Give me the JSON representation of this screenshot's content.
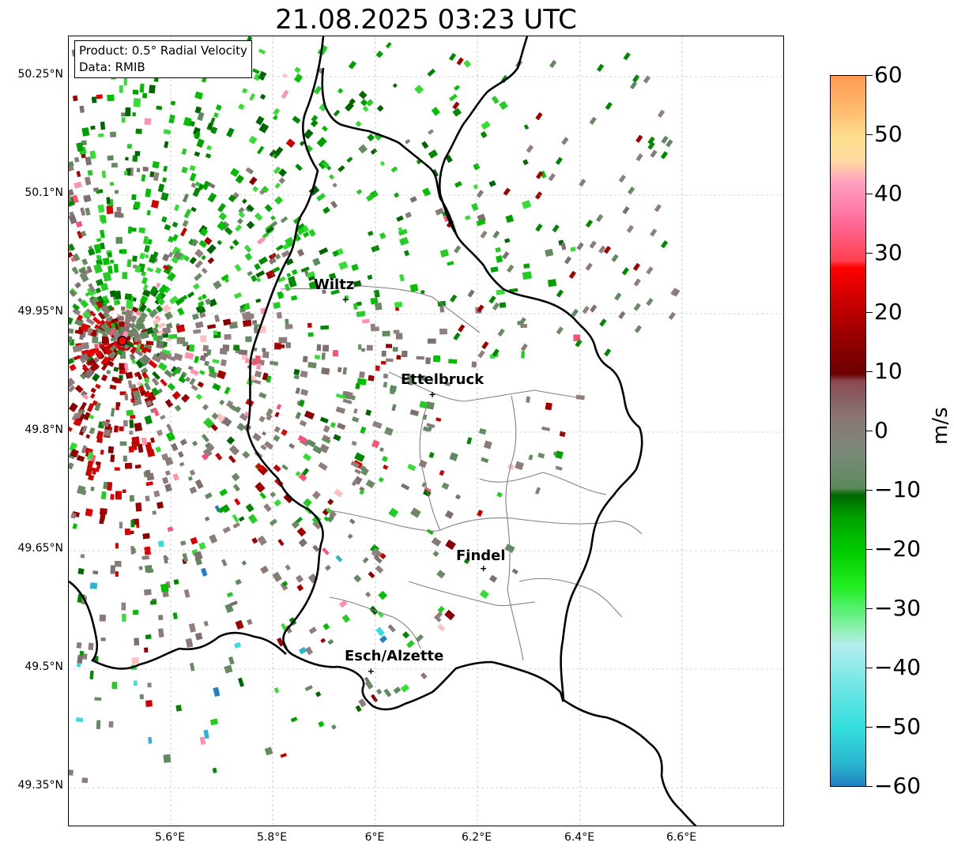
{
  "title": "21.08.2025 03:23 UTC",
  "info_box": {
    "product": "Product: 0.5° Radial Velocity",
    "data": "Data: RMIB"
  },
  "axes": {
    "lat_ticks": [
      "50.25°N",
      "50.1°N",
      "49.95°N",
      "49.8°N",
      "49.65°N",
      "49.5°N",
      "49.35°N"
    ],
    "lon_ticks": [
      "5.6°E",
      "5.8°E",
      "6°E",
      "6.2°E",
      "6.4°E",
      "6.6°E"
    ],
    "lat_range": [
      49.3,
      50.3
    ],
    "lon_range": [
      5.4,
      6.8
    ]
  },
  "cities": [
    {
      "name": "Wiltz",
      "lon": 5.93,
      "lat": 49.97
    },
    {
      "name": "Ettelbruck",
      "lon": 6.1,
      "lat": 49.85
    },
    {
      "name": "Findel",
      "lon": 6.2,
      "lat": 49.63
    },
    {
      "name": "Esch/Alzette",
      "lon": 5.98,
      "lat": 49.5
    }
  ],
  "radar_site": {
    "lon": 5.505,
    "lat": 49.915,
    "color": "#ff0000"
  },
  "colorbar": {
    "label": "m/s",
    "min": -60,
    "max": 60,
    "ticks": [
      "60",
      "50",
      "40",
      "30",
      "20",
      "10",
      "0",
      "−10",
      "−20",
      "−30",
      "−40",
      "−50",
      "−60"
    ]
  }
}
